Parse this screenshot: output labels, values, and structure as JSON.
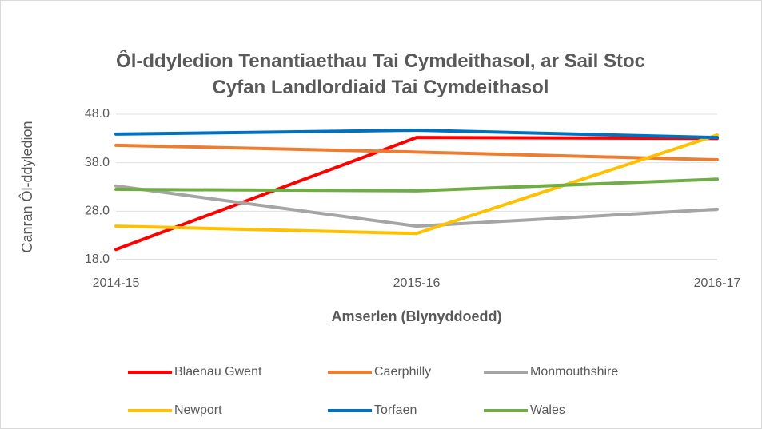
{
  "chart_data": {
    "type": "line",
    "title": "Ôl-ddyledion Tenantiaethau Tai Cymdeithasol, ar Sail Stoc Cyfan Landlordiaid Tai Cymdeithasol",
    "x_label": "Amserlen (Blynyddoedd)",
    "y_label": "Canran Ôl-ddyledion",
    "categories": [
      "2014-15",
      "2015-16",
      "2016-17"
    ],
    "series": [
      {
        "name": "Blaenau Gwent",
        "color": "#ff0000",
        "values": [
          20.1,
          43.2,
          43.0
        ]
      },
      {
        "name": "Caerphilly",
        "color": "#ed7d31",
        "values": [
          41.6,
          40.2,
          38.6
        ]
      },
      {
        "name": "Monmouthshire",
        "color": "#a5a5a5",
        "values": [
          33.2,
          24.9,
          28.4
        ]
      },
      {
        "name": "Newport",
        "color": "#ffc000",
        "values": [
          24.9,
          23.4,
          43.7
        ]
      },
      {
        "name": "Torfaen",
        "color": "#0070c0",
        "values": [
          43.9,
          44.7,
          43.2
        ]
      },
      {
        "name": "Wales",
        "color": "#70ad47",
        "values": [
          32.5,
          32.2,
          34.6
        ]
      }
    ],
    "ylim": [
      18,
      48
    ],
    "yticks": [
      {
        "value": 18,
        "label": "18.0"
      },
      {
        "value": 28,
        "label": "28.0"
      },
      {
        "value": 38,
        "label": "38.0"
      },
      {
        "value": 48,
        "label": "48.0"
      }
    ],
    "grid": true,
    "legend": "bottom"
  }
}
